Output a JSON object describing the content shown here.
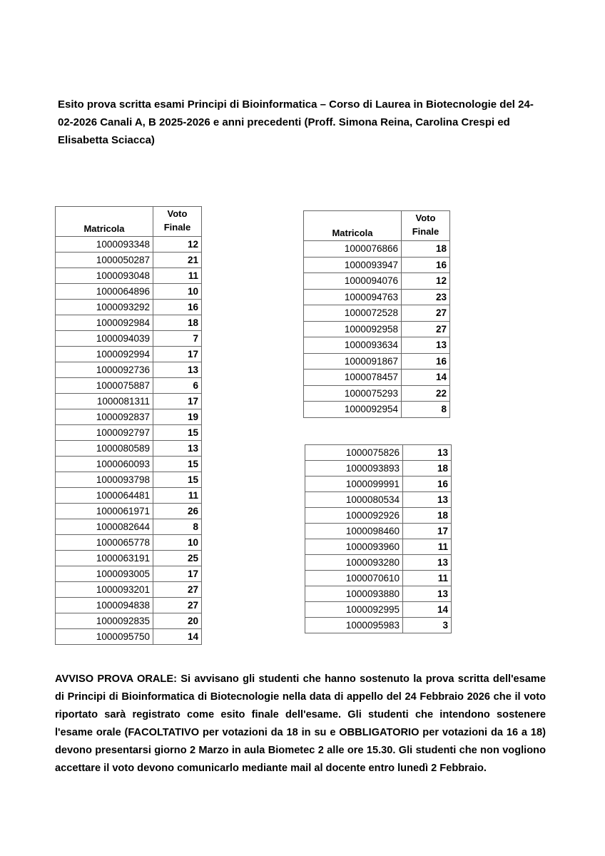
{
  "title": "Esito prova scritta esami Principi di Bioinformatica – Corso di Laurea in Biotecnologie del 24-02-2026 Canali A, B 2025-2026 e anni precedenti (Proff. Simona Reina, Carolina Crespi ed Elisabetta Sciacca)",
  "tables": [
    {
      "header": [
        "Matricola",
        "Voto Finale"
      ],
      "rows": [
        [
          "1000093348",
          12
        ],
        [
          "1000050287",
          21
        ],
        [
          "1000093048",
          11
        ],
        [
          "1000064896",
          10
        ],
        [
          "1000093292",
          16
        ],
        [
          "1000092984",
          18
        ],
        [
          "1000094039",
          7
        ],
        [
          "1000092994",
          17
        ],
        [
          "1000092736",
          13
        ],
        [
          "1000075887",
          6
        ],
        [
          "1000081311",
          17
        ],
        [
          "1000092837",
          19
        ],
        [
          "1000092797",
          15
        ],
        [
          "1000080589",
          13
        ],
        [
          "1000060093",
          15
        ],
        [
          "1000093798",
          15
        ],
        [
          "1000064481",
          11
        ],
        [
          "1000061971",
          26
        ],
        [
          "1000082644",
          8
        ],
        [
          "1000065778",
          10
        ],
        [
          "1000063191",
          25
        ],
        [
          "1000093005",
          17
        ],
        [
          "1000093201",
          27
        ],
        [
          "1000094838",
          27
        ],
        [
          "1000092835",
          20
        ],
        [
          "1000095750",
          14
        ]
      ]
    },
    {
      "header": [
        "Matricola",
        "Voto Finale"
      ],
      "rows": [
        [
          "1000076866",
          18
        ],
        [
          "1000093947",
          16
        ],
        [
          "1000094076",
          12
        ],
        [
          "1000094763",
          23
        ],
        [
          "1000072528",
          27
        ],
        [
          "1000092958",
          27
        ],
        [
          "1000093634",
          13
        ],
        [
          "1000091867",
          16
        ],
        [
          "1000078457",
          14
        ],
        [
          "1000075293",
          22
        ],
        [
          "1000092954",
          8
        ]
      ]
    },
    {
      "rows": [
        [
          "1000075826",
          13
        ],
        [
          "1000093893",
          18
        ],
        [
          "1000099991",
          16
        ],
        [
          "1000080534",
          13
        ],
        [
          "1000092926",
          18
        ],
        [
          "1000098460",
          17
        ],
        [
          "1000093960",
          11
        ],
        [
          "1000093280",
          13
        ],
        [
          "1000070610",
          11
        ],
        [
          "1000093880",
          13
        ],
        [
          "1000092995",
          14
        ],
        [
          "1000095983",
          3
        ]
      ]
    }
  ],
  "notice": "AVVISO PROVA ORALE: Si avvisano gli studenti che hanno sostenuto la prova scritta dell'esame di Principi di Bioinformatica di Biotecnologie nella data di appello del 24 Febbraio 2026 che il voto riportato sarà registrato come esito finale dell'esame. Gli studenti che intendono sostenere l'esame orale (FACOLTATIVO per votazioni da 18 in su e OBBLIGATORIO per votazioni da 16 a 18) devono presentarsi giorno 2 Marzo in aula Biometec 2 alle ore 15.30. Gli studenti che non vogliono accettare il voto devono comunicarlo mediante mail al docente entro lunedì 2 Febbraio."
}
